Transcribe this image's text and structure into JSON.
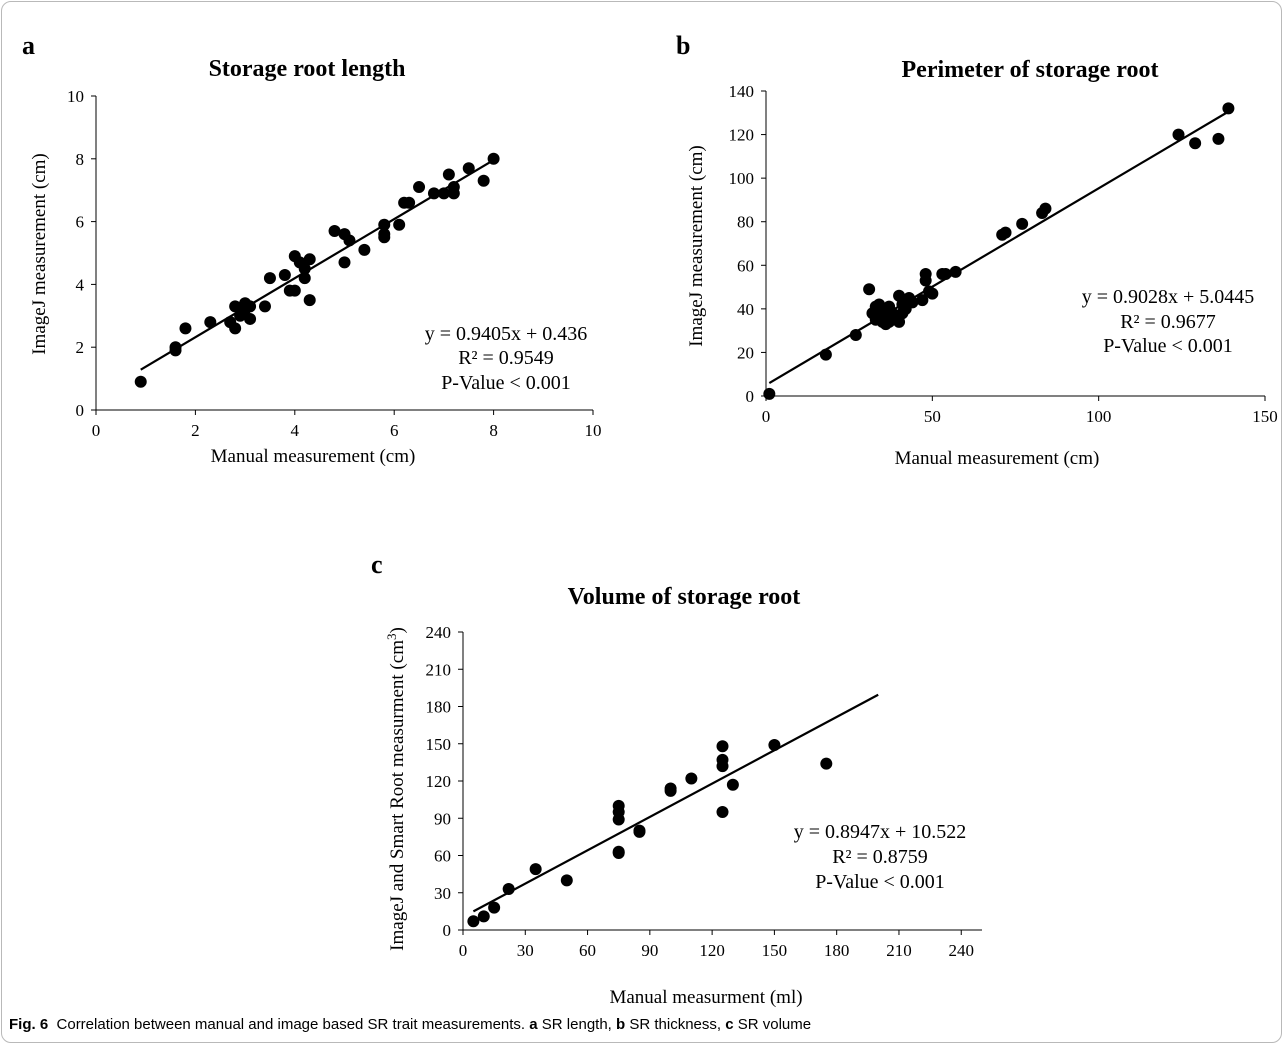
{
  "caption": {
    "fig_label": "Fig. 6",
    "intro": "Correlation between manual and image based SR trait measurements.",
    "a_label": "a",
    "a_text": "SR length,",
    "b_label": "b",
    "b_text": "SR thickness,",
    "c_label": "c",
    "c_text": "SR volume"
  },
  "chart_data": [
    {
      "panel": "a",
      "type": "scatter",
      "title": "Storage root length",
      "xlabel": "Manual measurement (cm)",
      "ylabel": "ImageJ measurement (cm)",
      "xlim": [
        0,
        10
      ],
      "ylim": [
        0,
        10
      ],
      "xticks": [
        0,
        2,
        4,
        6,
        8,
        10
      ],
      "yticks": [
        0,
        2,
        4,
        6,
        8,
        10
      ],
      "grid": false,
      "points": [
        [
          0.9,
          0.9
        ],
        [
          1.6,
          2.0
        ],
        [
          1.6,
          1.9
        ],
        [
          1.8,
          2.6
        ],
        [
          2.3,
          2.8
        ],
        [
          2.7,
          2.8
        ],
        [
          2.8,
          3.3
        ],
        [
          2.8,
          2.6
        ],
        [
          2.9,
          3.0
        ],
        [
          3.0,
          3.4
        ],
        [
          3.0,
          3.2
        ],
        [
          3.1,
          2.9
        ],
        [
          3.1,
          3.3
        ],
        [
          3.4,
          3.3
        ],
        [
          3.5,
          4.2
        ],
        [
          3.8,
          4.3
        ],
        [
          3.9,
          3.8
        ],
        [
          4.0,
          3.8
        ],
        [
          4.0,
          4.9
        ],
        [
          4.1,
          4.7
        ],
        [
          4.2,
          4.2
        ],
        [
          4.2,
          4.5
        ],
        [
          4.3,
          4.8
        ],
        [
          4.3,
          3.5
        ],
        [
          4.8,
          5.7
        ],
        [
          5.0,
          5.6
        ],
        [
          5.0,
          4.7
        ],
        [
          5.1,
          5.4
        ],
        [
          5.4,
          5.1
        ],
        [
          5.8,
          5.9
        ],
        [
          5.8,
          5.6
        ],
        [
          5.8,
          5.5
        ],
        [
          6.1,
          5.9
        ],
        [
          6.2,
          6.6
        ],
        [
          6.3,
          6.6
        ],
        [
          6.5,
          7.1
        ],
        [
          6.8,
          6.9
        ],
        [
          7.0,
          6.9
        ],
        [
          7.1,
          7.5
        ],
        [
          7.2,
          6.9
        ],
        [
          7.2,
          7.1
        ],
        [
          7.5,
          7.7
        ],
        [
          7.8,
          7.3
        ],
        [
          8.0,
          8.0
        ]
      ],
      "trendline": {
        "slope": 0.9405,
        "intercept": 0.436,
        "x_range": [
          0.9,
          8.0
        ]
      },
      "annotations": [
        "y = 0.9405x + 0.436",
        "R² = 0.9549",
        "P-Value < 0.001"
      ]
    },
    {
      "panel": "b",
      "type": "scatter",
      "title": "Perimeter of storage root",
      "xlabel": "Manual measurement (cm)",
      "ylabel": "ImageJ  measurement (cm)",
      "xlim": [
        0,
        150
      ],
      "ylim": [
        0,
        140
      ],
      "xticks": [
        0,
        50,
        100,
        150
      ],
      "yticks": [
        0,
        20,
        40,
        60,
        80,
        100,
        120,
        140
      ],
      "grid": false,
      "points": [
        [
          1,
          1
        ],
        [
          18,
          19
        ],
        [
          27,
          28
        ],
        [
          31,
          49
        ],
        [
          32,
          38
        ],
        [
          33,
          35
        ],
        [
          33,
          41
        ],
        [
          34,
          36
        ],
        [
          34,
          42
        ],
        [
          35,
          34
        ],
        [
          35,
          38
        ],
        [
          36,
          33
        ],
        [
          36,
          36
        ],
        [
          36,
          39
        ],
        [
          37,
          34
        ],
        [
          37,
          41
        ],
        [
          38,
          35
        ],
        [
          38,
          38
        ],
        [
          39,
          37
        ],
        [
          40,
          34
        ],
        [
          40,
          46
        ],
        [
          41,
          38
        ],
        [
          41,
          42
        ],
        [
          42,
          40
        ],
        [
          43,
          45
        ],
        [
          44,
          43
        ],
        [
          47,
          44
        ],
        [
          48,
          56
        ],
        [
          48,
          53
        ],
        [
          49,
          48
        ],
        [
          50,
          47
        ],
        [
          53,
          56
        ],
        [
          54,
          56
        ],
        [
          57,
          57
        ],
        [
          71,
          74
        ],
        [
          72,
          75
        ],
        [
          77,
          79
        ],
        [
          83,
          84
        ],
        [
          84,
          86
        ],
        [
          124,
          120
        ],
        [
          129,
          116
        ],
        [
          136,
          118
        ],
        [
          139,
          132
        ]
      ],
      "trendline": {
        "slope": 0.9028,
        "intercept": 5.0445,
        "x_range": [
          1,
          139
        ]
      },
      "annotations": [
        "y = 0.9028x + 5.0445",
        "R² = 0.9677",
        "P-Value  < 0.001"
      ]
    },
    {
      "panel": "c",
      "type": "scatter",
      "title": "Volume of storage root",
      "xlabel": "Manual measurment (ml)",
      "ylabel": "ImageJ and Smart Root measurment (cm³)",
      "xlim": [
        0,
        250
      ],
      "ylim": [
        0,
        240
      ],
      "xticks": [
        0,
        30,
        60,
        90,
        120,
        150,
        180,
        210,
        240
      ],
      "yticks": [
        0,
        30,
        60,
        90,
        120,
        150,
        180,
        210,
        240
      ],
      "grid": false,
      "points": [
        [
          5,
          7
        ],
        [
          10,
          11
        ],
        [
          15,
          18
        ],
        [
          22,
          33
        ],
        [
          35,
          49
        ],
        [
          50,
          40
        ],
        [
          75,
          100
        ],
        [
          75,
          95
        ],
        [
          75,
          89
        ],
        [
          75,
          63
        ],
        [
          75,
          62
        ],
        [
          85,
          79
        ],
        [
          85,
          80
        ],
        [
          100,
          114
        ],
        [
          100,
          112
        ],
        [
          110,
          122
        ],
        [
          125,
          148
        ],
        [
          125,
          137
        ],
        [
          125,
          132
        ],
        [
          125,
          95
        ],
        [
          130,
          117
        ],
        [
          150,
          149
        ],
        [
          175,
          134
        ]
      ],
      "trendline": {
        "slope": 0.8947,
        "intercept": 10.522,
        "x_range": [
          5,
          200
        ]
      },
      "annotations": [
        "y = 0.8947x + 10.522",
        "R² = 0.8759",
        "P-Value < 0.001"
      ]
    }
  ]
}
